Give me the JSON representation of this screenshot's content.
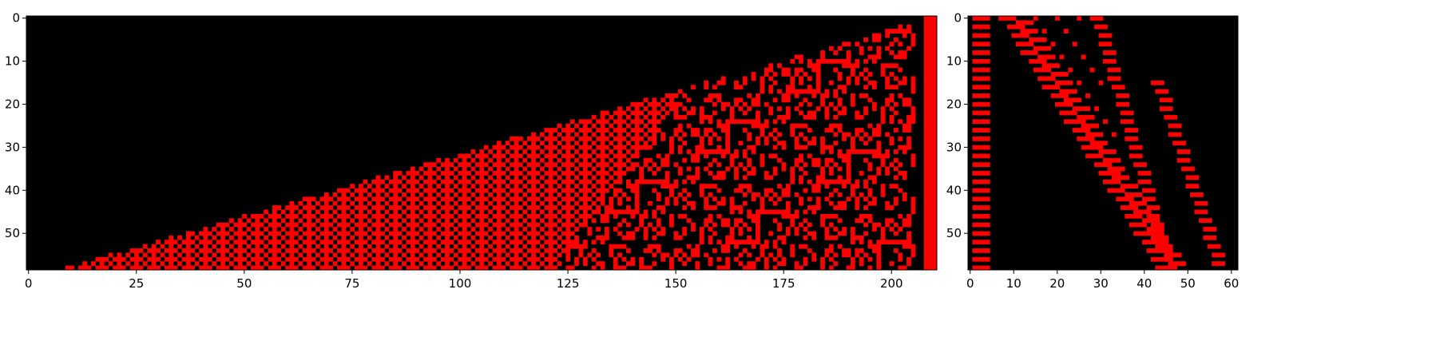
{
  "chart_data": [
    {
      "type": "heatmap",
      "title": "",
      "xlabel": "",
      "ylabel": "",
      "xlim": [
        0,
        211
      ],
      "ylim": [
        59,
        0
      ],
      "x_ticks": [
        0,
        25,
        50,
        75,
        100,
        125,
        150,
        175,
        200
      ],
      "y_ticks": [
        0,
        10,
        20,
        30,
        40,
        50
      ],
      "colors": {
        "background": "#000000",
        "cell": "#ff0000"
      },
      "pattern": "wedge-of-alternating-red-black-cells",
      "rule_band_x": [
        208,
        211
      ]
    },
    {
      "type": "heatmap",
      "title": "",
      "xlabel": "",
      "ylabel": "",
      "xlim": [
        0,
        62
      ],
      "ylim": [
        59,
        0
      ],
      "x_ticks": [
        0,
        10,
        20,
        30,
        40,
        50,
        60
      ],
      "y_ticks": [
        0,
        10,
        20,
        30,
        40,
        50
      ],
      "colors": {
        "background": "#000000",
        "cell": "#ff0000"
      },
      "pattern": "diagonal-dashed-strokes"
    }
  ]
}
